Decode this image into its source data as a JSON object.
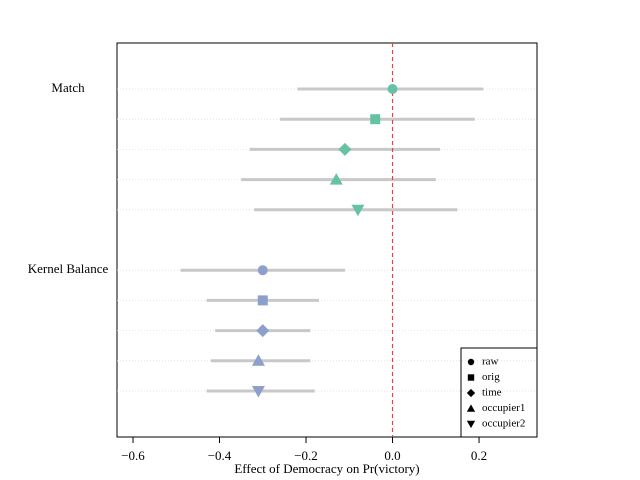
{
  "chart_data": {
    "type": "dotplot",
    "xlabel": "Effect of Democracy on Pr(victory)",
    "xlim": [
      -0.637,
      0.334
    ],
    "xticks": [
      {
        "value": -0.6,
        "label": "−0.6"
      },
      {
        "value": -0.4,
        "label": "−0.4"
      },
      {
        "value": -0.2,
        "label": "−0.2"
      },
      {
        "value": 0,
        "label": "0.0"
      },
      0.2
    ],
    "refline": 0,
    "refline_color": "#e8403f",
    "ci_color": "#c8c8c8",
    "legend_position": "lower right",
    "legend": [
      "raw",
      "orig",
      "time",
      "occupier1",
      "occupier2"
    ],
    "markers": [
      "circle",
      "square",
      "diamond",
      "triangle-up",
      "triangle-down"
    ],
    "groups": [
      {
        "name": "Match",
        "color": "#66c2a5",
        "estimates": [
          0.0,
          -0.04,
          -0.11,
          -0.13,
          -0.08
        ],
        "lower": [
          -0.22,
          -0.26,
          -0.33,
          -0.35,
          -0.32
        ],
        "upper": [
          0.21,
          0.19,
          0.11,
          0.1,
          0.15
        ]
      },
      {
        "name": "Kernel Balance",
        "color": "#8da0cb",
        "estimates": [
          -0.3,
          -0.3,
          -0.3,
          -0.31,
          -0.31
        ],
        "lower": [
          -0.49,
          -0.43,
          -0.41,
          -0.42,
          -0.43
        ],
        "upper": [
          -0.11,
          -0.17,
          -0.19,
          -0.19,
          -0.18
        ]
      }
    ]
  }
}
